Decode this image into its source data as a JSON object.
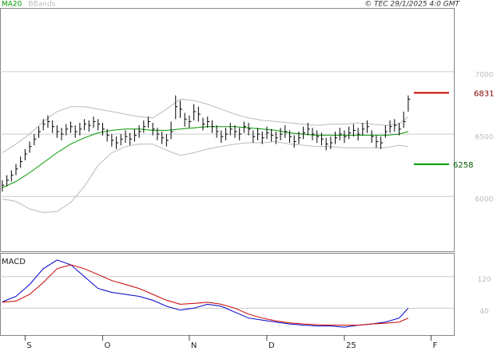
{
  "chart_data": [
    {
      "type": "ohlc",
      "source": "© TEC 29/1/2025 4:0 GMT",
      "xlim": [
        -0.5,
        99
      ],
      "ylim": [
        5560,
        7505
      ],
      "yticks": [
        6000,
        6500,
        7000
      ],
      "grid": true,
      "x": [
        0,
        1,
        2,
        3,
        4,
        5,
        6,
        7,
        8,
        9,
        10,
        11,
        12,
        13,
        14,
        15,
        16,
        17,
        18,
        19,
        20,
        21,
        22,
        23,
        24,
        25,
        26,
        27,
        28,
        29,
        30,
        31,
        32,
        33,
        34,
        35,
        36,
        37,
        38,
        39,
        40,
        41,
        42,
        43,
        44,
        45,
        46,
        47,
        48,
        49,
        50,
        51,
        52,
        53,
        54,
        55,
        56,
        57,
        58,
        59,
        60,
        61,
        62,
        63,
        64,
        65,
        66,
        67,
        68,
        69,
        70,
        71,
        72,
        73,
        74,
        75,
        76,
        77,
        78,
        79,
        80,
        81,
        82,
        83,
        84,
        85,
        86,
        87,
        88,
        89
      ],
      "high": [
        6130,
        6170,
        6210,
        6260,
        6320,
        6380,
        6440,
        6500,
        6560,
        6620,
        6650,
        6610,
        6570,
        6550,
        6580,
        6600,
        6570,
        6590,
        6620,
        6610,
        6640,
        6620,
        6590,
        6540,
        6500,
        6480,
        6500,
        6530,
        6510,
        6540,
        6570,
        6610,
        6640,
        6590,
        6550,
        6520,
        6500,
        6600,
        6810,
        6770,
        6670,
        6650,
        6740,
        6720,
        6630,
        6640,
        6610,
        6570,
        6530,
        6550,
        6590,
        6570,
        6550,
        6600,
        6590,
        6530,
        6550,
        6520,
        6560,
        6540,
        6520,
        6550,
        6570,
        6530,
        6490,
        6520,
        6560,
        6590,
        6550,
        6530,
        6510,
        6470,
        6480,
        6520,
        6550,
        6530,
        6560,
        6580,
        6550,
        6590,
        6610,
        6530,
        6490,
        6480,
        6570,
        6610,
        6620,
        6590,
        6680,
        6810
      ],
      "low": [
        6040,
        6080,
        6120,
        6170,
        6230,
        6290,
        6350,
        6410,
        6470,
        6530,
        6550,
        6510,
        6470,
        6450,
        6490,
        6510,
        6470,
        6490,
        6530,
        6520,
        6550,
        6530,
        6490,
        6440,
        6400,
        6380,
        6410,
        6430,
        6410,
        6440,
        6470,
        6510,
        6550,
        6490,
        6450,
        6420,
        6400,
        6460,
        6620,
        6630,
        6560,
        6550,
        6610,
        6600,
        6530,
        6550,
        6510,
        6470,
        6430,
        6450,
        6490,
        6470,
        6450,
        6510,
        6490,
        6430,
        6450,
        6420,
        6460,
        6440,
        6420,
        6450,
        6470,
        6430,
        6390,
        6420,
        6460,
        6490,
        6450,
        6430,
        6410,
        6370,
        6380,
        6420,
        6450,
        6430,
        6460,
        6480,
        6450,
        6490,
        6510,
        6430,
        6390,
        6380,
        6470,
        6510,
        6520,
        6490,
        6550,
        6680
      ],
      "close": [
        6090,
        6130,
        6170,
        6220,
        6280,
        6340,
        6400,
        6460,
        6520,
        6580,
        6600,
        6560,
        6520,
        6500,
        6540,
        6560,
        6520,
        6540,
        6580,
        6570,
        6600,
        6580,
        6540,
        6490,
        6450,
        6430,
        6460,
        6480,
        6460,
        6490,
        6520,
        6560,
        6600,
        6540,
        6500,
        6470,
        6450,
        6520,
        6720,
        6700,
        6620,
        6600,
        6680,
        6660,
        6580,
        6600,
        6560,
        6520,
        6480,
        6500,
        6540,
        6520,
        6500,
        6560,
        6540,
        6480,
        6500,
        6470,
        6510,
        6490,
        6470,
        6500,
        6520,
        6480,
        6440,
        6470,
        6510,
        6540,
        6500,
        6480,
        6460,
        6420,
        6430,
        6470,
        6500,
        6480,
        6510,
        6530,
        6500,
        6540,
        6560,
        6480,
        6440,
        6430,
        6520,
        6560,
        6570,
        6540,
        6600,
        6780
      ],
      "series": [
        {
          "name": "MA20",
          "color": "#009900",
          "x": [
            0,
            3,
            6,
            9,
            12,
            15,
            18,
            21,
            24,
            27,
            30,
            33,
            36,
            39,
            42,
            45,
            48,
            51,
            54,
            57,
            60,
            63,
            66,
            69,
            72,
            75,
            78,
            81,
            84,
            87,
            89
          ],
          "values": [
            6070,
            6120,
            6190,
            6270,
            6350,
            6420,
            6470,
            6510,
            6530,
            6540,
            6540,
            6530,
            6530,
            6540,
            6550,
            6560,
            6560,
            6560,
            6550,
            6540,
            6530,
            6510,
            6500,
            6490,
            6490,
            6490,
            6490,
            6490,
            6490,
            6500,
            6520
          ]
        },
        {
          "name": "BBands",
          "color": "#bbbbbb",
          "x": [
            0,
            3,
            6,
            9,
            12,
            15,
            18,
            21,
            24,
            27,
            30,
            33,
            36,
            39,
            42,
            45,
            48,
            51,
            54,
            57,
            60,
            63,
            66,
            69,
            72,
            75,
            78,
            81,
            84,
            87,
            89
          ],
          "upper": [
            6350,
            6420,
            6500,
            6600,
            6680,
            6720,
            6720,
            6700,
            6680,
            6660,
            6640,
            6630,
            6700,
            6780,
            6770,
            6740,
            6700,
            6660,
            6630,
            6610,
            6600,
            6590,
            6580,
            6570,
            6580,
            6580,
            6590,
            6580,
            6570,
            6580,
            6640
          ],
          "lower": [
            5980,
            5960,
            5900,
            5870,
            5880,
            5950,
            6080,
            6250,
            6350,
            6400,
            6420,
            6420,
            6370,
            6330,
            6350,
            6380,
            6400,
            6420,
            6430,
            6430,
            6440,
            6420,
            6410,
            6400,
            6400,
            6390,
            6390,
            6390,
            6390,
            6410,
            6400
          ]
        }
      ],
      "levels": [
        {
          "value": 6831,
          "color": "#cc0000"
        },
        {
          "value": 6258,
          "color": "#009900"
        }
      ]
    },
    {
      "type": "line",
      "title": "MACD",
      "xlim": [
        -0.5,
        99
      ],
      "ylim": [
        -28,
        178
      ],
      "yticks": [
        120,
        40
      ],
      "grid": true,
      "xticks": [
        {
          "value": 5,
          "label": "S"
        },
        {
          "value": 22,
          "label": "O"
        },
        {
          "value": 41,
          "label": "N"
        },
        {
          "value": 58,
          "label": "D"
        },
        {
          "value": 75,
          "label": "25"
        },
        {
          "value": 94,
          "label": "F"
        }
      ],
      "series": [
        {
          "color": "#0000cc",
          "x": [
            0,
            3,
            6,
            9,
            12,
            15,
            18,
            21,
            24,
            27,
            30,
            33,
            36,
            39,
            42,
            45,
            48,
            51,
            54,
            57,
            60,
            63,
            66,
            69,
            72,
            75,
            78,
            81,
            84,
            87,
            89
          ],
          "values": [
            56,
            70,
            100,
            140,
            162,
            150,
            120,
            90,
            80,
            75,
            70,
            60,
            45,
            35,
            40,
            50,
            45,
            30,
            15,
            10,
            5,
            0,
            -3,
            -5,
            -5,
            -8,
            -3,
            0,
            5,
            15,
            40
          ]
        },
        {
          "color": "#cc0000",
          "x": [
            0,
            3,
            6,
            9,
            12,
            15,
            18,
            21,
            24,
            27,
            30,
            33,
            36,
            39,
            42,
            45,
            48,
            51,
            54,
            57,
            60,
            63,
            66,
            69,
            72,
            75,
            78,
            81,
            84,
            87,
            89
          ],
          "values": [
            55,
            58,
            75,
            105,
            140,
            150,
            140,
            125,
            110,
            100,
            90,
            75,
            60,
            50,
            52,
            55,
            50,
            40,
            25,
            15,
            8,
            3,
            0,
            -2,
            -3,
            -3,
            -3,
            0,
            2,
            5,
            15
          ]
        }
      ]
    }
  ]
}
